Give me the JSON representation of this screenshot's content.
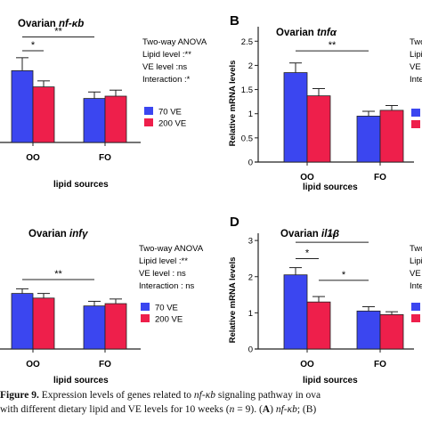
{
  "chart_data": [
    {
      "type": "bar",
      "panel_letter": "",
      "title_prefix": "Ovarian ",
      "title_gene": "nf-κb",
      "xlabel": "lipid sources",
      "ylabel": "",
      "categories": [
        "OO",
        "FO"
      ],
      "ylim": [
        0,
        2.5
      ],
      "series": [
        {
          "name": "70  VE",
          "values": [
            1.55,
            0.95
          ],
          "errors": [
            0.28,
            0.14
          ]
        },
        {
          "name": "200 VE",
          "values": [
            1.2,
            1.0
          ],
          "errors": [
            0.13,
            0.13
          ]
        }
      ],
      "stats": [
        "Two-way ANOVA",
        "Lipid level :**",
        "VE  level  :ns",
        "Interaction :*"
      ],
      "sig": [
        {
          "from": [
            0,
            0
          ],
          "to": [
            0,
            1
          ],
          "label": "*",
          "y": 1.98
        },
        {
          "from": [
            0,
            0
          ],
          "to": [
            1,
            0
          ],
          "label": "**",
          "y": 2.28
        }
      ]
    },
    {
      "type": "bar",
      "panel_letter": "B",
      "title_prefix": "Ovarian ",
      "title_gene": "tnfα",
      "xlabel": "lipid sources",
      "ylabel": "Relative mRNA levels",
      "categories": [
        "OO",
        "FO"
      ],
      "ylim": [
        0,
        2.8
      ],
      "yticks": [
        0,
        0.5,
        1.0,
        1.5,
        2.0,
        2.5
      ],
      "series": [
        {
          "name": "70  VE",
          "values": [
            1.85,
            0.95
          ],
          "errors": [
            0.2,
            0.1
          ]
        },
        {
          "name": "200 VE",
          "values": [
            1.37,
            1.07
          ],
          "errors": [
            0.15,
            0.1
          ]
        }
      ],
      "stats": [
        "Two-way",
        "Lipid le",
        "VE  le",
        "Interac"
      ],
      "sig": [
        {
          "from": [
            0,
            0
          ],
          "to": [
            1,
            0
          ],
          "label": "**",
          "y": 2.3
        }
      ]
    },
    {
      "type": "bar",
      "panel_letter": "",
      "title_prefix": "Ovarian ",
      "title_gene": "infγ",
      "xlabel": "lipid sources",
      "ylabel": "",
      "categories": [
        "OO",
        "FO"
      ],
      "ylim": [
        0,
        2.5
      ],
      "series": [
        {
          "name": "70  VE",
          "values": [
            1.2,
            0.93
          ],
          "errors": [
            0.1,
            0.1
          ]
        },
        {
          "name": "200 VE",
          "values": [
            1.1,
            0.98
          ],
          "errors": [
            0.1,
            0.1
          ]
        }
      ],
      "stats": [
        "Two-way ANOVA",
        "Lipid level :**",
        "VE  level  : ns",
        "Interaction : ns"
      ],
      "sig": [
        {
          "from": [
            0,
            0
          ],
          "to": [
            1,
            0
          ],
          "label": "**",
          "y": 1.5
        }
      ]
    },
    {
      "type": "bar",
      "panel_letter": "D",
      "title_prefix": "Ovarian ",
      "title_gene": "il1β",
      "xlabel": "lipid sources",
      "ylabel": "Relative mRNA levels",
      "categories": [
        "OO",
        "FO"
      ],
      "ylim": [
        0,
        3.2
      ],
      "yticks": [
        0,
        1,
        2,
        3
      ],
      "series": [
        {
          "name": "70  VE",
          "values": [
            2.05,
            1.05
          ],
          "errors": [
            0.2,
            0.12
          ]
        },
        {
          "name": "200 VE",
          "values": [
            1.3,
            0.95
          ],
          "errors": [
            0.15,
            0.08
          ]
        }
      ],
      "stats": [
        "Two-",
        "Lipid",
        "VE",
        "Inte"
      ],
      "sig": [
        {
          "from": [
            0,
            0
          ],
          "to": [
            0,
            1
          ],
          "label": "*",
          "y": 2.5
        },
        {
          "from": [
            0,
            0
          ],
          "to": [
            1,
            0
          ],
          "label": "**",
          "y": 2.95
        },
        {
          "from": [
            0,
            1
          ],
          "to": [
            1,
            0
          ],
          "label": "*",
          "y": 1.9
        }
      ]
    }
  ],
  "caption": {
    "line1_label": "Figure 9.",
    "line1_text": " Expression levels of genes related to ",
    "line1_gene": "nf-κb",
    "line1_rest": " signaling pathway in ova",
    "line2_a": "with different dietary lipid and VE levels for 10 weeks (",
    "line2_n": "n",
    "line2_b": " = 9). (",
    "line2_A": "A",
    "line2_c": ") ",
    "line2_gene": "nf-κb",
    "line2_d": "; (B)"
  },
  "colors": {
    "ve70": "#3b46f0",
    "ve200": "#ee1f4b"
  }
}
